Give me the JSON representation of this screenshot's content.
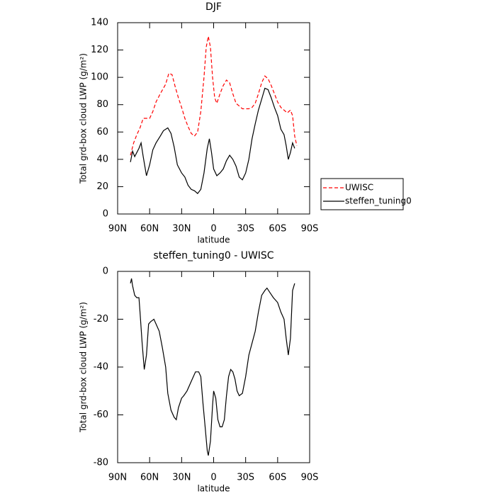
{
  "chart_data": [
    {
      "type": "line",
      "title": "DJF",
      "xlabel": "latitude",
      "ylabel": "Total grd-box cloud LWP (g/m²)",
      "xlim": [
        90,
        -90
      ],
      "xticks": [
        {
          "value": 90,
          "label": "90N"
        },
        {
          "value": 60,
          "label": "60N"
        },
        {
          "value": 30,
          "label": "30N"
        },
        0,
        {
          "value": -30,
          "label": "30S"
        },
        {
          "value": -60,
          "label": "60S"
        },
        {
          "value": -90,
          "label": "90S"
        }
      ],
      "ylim": [
        0,
        140
      ],
      "yticks": [
        0,
        20,
        40,
        60,
        80,
        100,
        120,
        140
      ],
      "legend": "right",
      "series": [
        {
          "name": "UWISC",
          "color": "#ff0000",
          "line_style": "dashed",
          "x": [
            78,
            75,
            72,
            69,
            66,
            63,
            60,
            57,
            54,
            50,
            45,
            42,
            39,
            36,
            33,
            30,
            27,
            24,
            21,
            18,
            15,
            12,
            9,
            7,
            5,
            3,
            1,
            -1,
            -3,
            -6,
            -9,
            -12,
            -15,
            -18,
            -21,
            -24,
            -27,
            -30,
            -33,
            -36,
            -39,
            -42,
            -45,
            -48,
            -51,
            -54,
            -57,
            -60,
            -63,
            -66,
            -69,
            -72,
            -74,
            -76,
            -78
          ],
          "values": [
            43,
            52,
            58,
            63,
            70,
            70,
            70,
            75,
            82,
            88,
            95,
            103,
            102,
            93,
            85,
            78,
            70,
            64,
            59,
            57,
            60,
            75,
            100,
            122,
            130,
            122,
            100,
            85,
            81,
            88,
            94,
            98,
            96,
            88,
            81,
            79,
            77,
            77,
            77,
            78,
            81,
            88,
            96,
            101,
            99,
            94,
            88,
            82,
            78,
            76,
            74,
            76,
            72,
            57,
            50
          ]
        },
        {
          "name": "steffen_tuning0",
          "color": "#000000",
          "line_style": "solid",
          "x": [
            78,
            76,
            74,
            72,
            70,
            68,
            66,
            63,
            60,
            57,
            54,
            50,
            47,
            43,
            40,
            37,
            34,
            30,
            27,
            24,
            21,
            18,
            15,
            12,
            9,
            6,
            4,
            2,
            0,
            -3,
            -6,
            -9,
            -12,
            -15,
            -18,
            -21,
            -24,
            -27,
            -30,
            -33,
            -36,
            -39,
            -42,
            -45,
            -48,
            -51,
            -54,
            -57,
            -60,
            -63,
            -66,
            -68,
            -70,
            -72,
            -74,
            -76
          ],
          "values": [
            38,
            46,
            42,
            45,
            48,
            52,
            42,
            28,
            36,
            47,
            52,
            57,
            61,
            63,
            59,
            49,
            36,
            30,
            27,
            21,
            18,
            17,
            15,
            18,
            30,
            48,
            55,
            45,
            33,
            28,
            30,
            33,
            39,
            43,
            40,
            35,
            27,
            25,
            30,
            40,
            55,
            66,
            76,
            84,
            92,
            91,
            85,
            78,
            72,
            62,
            58,
            50,
            40,
            45,
            52,
            48
          ]
        }
      ]
    },
    {
      "type": "line",
      "title": "steffen_tuning0 - UWISC",
      "xlabel": "latitude",
      "ylabel": "Total grd-box cloud LWP (g/m²)",
      "xlim": [
        90,
        -90
      ],
      "xticks": [
        {
          "value": 90,
          "label": "90N"
        },
        {
          "value": 60,
          "label": "60N"
        },
        {
          "value": 30,
          "label": "30N"
        },
        0,
        {
          "value": -30,
          "label": "30S"
        },
        {
          "value": -60,
          "label": "60S"
        },
        {
          "value": -90,
          "label": "90S"
        }
      ],
      "ylim": [
        -80,
        0
      ],
      "yticks": [
        -80,
        -60,
        -40,
        -20,
        0
      ],
      "series": [
        {
          "color": "#000000",
          "line_style": "solid",
          "x": [
            78,
            77,
            76,
            74,
            72,
            70,
            69,
            67,
            65,
            63,
            61,
            59,
            56,
            54,
            51,
            48,
            45,
            43,
            40,
            37,
            35,
            33,
            30,
            28,
            25,
            22,
            20,
            17,
            14,
            12,
            10,
            8,
            6,
            5,
            3,
            1,
            0,
            -2,
            -4,
            -6,
            -8,
            -10,
            -12,
            -14,
            -16,
            -18,
            -20,
            -22,
            -24,
            -27,
            -30,
            -33,
            -36,
            -39,
            -42,
            -45,
            -48,
            -50,
            -53,
            -56,
            -58,
            -60,
            -63,
            -66,
            -68,
            -70,
            -72,
            -74,
            -76
          ],
          "values": [
            -5,
            -3,
            -6,
            -10,
            -11,
            -11,
            -17,
            -30,
            -41,
            -35,
            -22,
            -21,
            -20,
            -22,
            -25,
            -32,
            -40,
            -51,
            -58,
            -61,
            -62,
            -57,
            -53,
            -52,
            -50,
            -47,
            -45,
            -42,
            -42,
            -44,
            -55,
            -65,
            -75,
            -77,
            -71,
            -56,
            -50,
            -53,
            -62,
            -65,
            -65,
            -62,
            -52,
            -44,
            -41,
            -42,
            -45,
            -50,
            -52,
            -51,
            -44,
            -35,
            -30,
            -25,
            -17,
            -10,
            -8,
            -7,
            -9,
            -11,
            -12,
            -13,
            -17,
            -20,
            -28,
            -35,
            -28,
            -8,
            -5
          ]
        }
      ]
    }
  ]
}
